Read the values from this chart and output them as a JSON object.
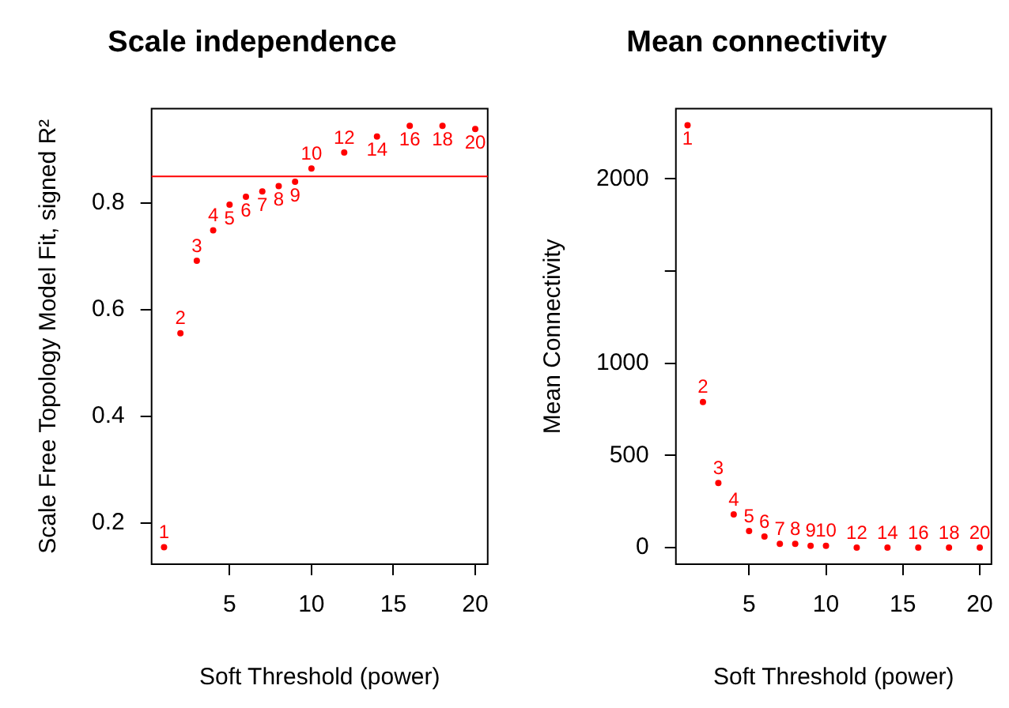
{
  "chart_data": [
    {
      "type": "scatter",
      "title": "Scale independence",
      "xlabel": "Soft Threshold (power)",
      "ylabel": "Scale Free Topology Model Fit, signed R²",
      "x": [
        1,
        2,
        3,
        4,
        5,
        6,
        7,
        8,
        9,
        10,
        12,
        14,
        16,
        18,
        20
      ],
      "xlim": [
        0.24,
        20.76
      ],
      "xticks": [
        5,
        10,
        15,
        20
      ],
      "ylim": [
        0.123,
        0.977
      ],
      "yticks": [
        0.2,
        0.4,
        0.6,
        0.8
      ],
      "marker": "circle",
      "grid": false,
      "legend": false,
      "series": [
        {
          "color": "#ff0000",
          "values": [
            0.155,
            0.556,
            0.692,
            0.749,
            0.797,
            0.812,
            0.822,
            0.832,
            0.84,
            0.865,
            0.895,
            0.925,
            0.945,
            0.945,
            0.939
          ]
        }
      ],
      "annotations": [
        {
          "text": "1",
          "x": 1,
          "y": 0.155
        },
        {
          "text": "2",
          "x": 2,
          "y": 0.556
        },
        {
          "text": "3",
          "x": 3,
          "y": 0.692
        },
        {
          "text": "4",
          "x": 4,
          "y": 0.749
        },
        {
          "text": "5",
          "x": 5,
          "y": 0.797
        },
        {
          "text": "6",
          "x": 6,
          "y": 0.812
        },
        {
          "text": "7",
          "x": 7,
          "y": 0.822
        },
        {
          "text": "8",
          "x": 8,
          "y": 0.832
        },
        {
          "text": "9",
          "x": 9,
          "y": 0.84
        },
        {
          "text": "10",
          "x": 10,
          "y": 0.865
        },
        {
          "text": "12",
          "x": 12,
          "y": 0.895
        },
        {
          "text": "14",
          "x": 14,
          "y": 0.925
        },
        {
          "text": "16",
          "x": 16,
          "y": 0.945
        },
        {
          "text": "18",
          "x": 18,
          "y": 0.945
        },
        {
          "text": "20",
          "x": 20,
          "y": 0.939
        }
      ],
      "ref_lines": [
        {
          "axis": "y",
          "value": 0.85,
          "color": "#ff0000"
        }
      ]
    },
    {
      "type": "scatter",
      "title": "Mean connectivity",
      "xlabel": "Soft Threshold (power)",
      "ylabel": "Mean Connectivity",
      "x": [
        1,
        2,
        3,
        4,
        5,
        6,
        7,
        8,
        9,
        10,
        12,
        14,
        16,
        18,
        20
      ],
      "xlim": [
        0.24,
        20.76
      ],
      "xticks": [
        5,
        10,
        15,
        20
      ],
      "ylim": [
        -90,
        2380
      ],
      "yticks": [
        0,
        500,
        1000,
        {
          "value": 1500,
          "label": null
        },
        2000
      ],
      "marker": "circle",
      "grid": false,
      "legend": false,
      "series": [
        {
          "color": "#ff0000",
          "values": [
            2290,
            790,
            350,
            180,
            90,
            60,
            20,
            20,
            10,
            10,
            0,
            0,
            0,
            0,
            0
          ]
        }
      ],
      "annotations": [
        {
          "text": "1",
          "x": 1,
          "y": 2290
        },
        {
          "text": "2",
          "x": 2,
          "y": 790
        },
        {
          "text": "3",
          "x": 3,
          "y": 350
        },
        {
          "text": "4",
          "x": 4,
          "y": 180
        },
        {
          "text": "5",
          "x": 5,
          "y": 90
        },
        {
          "text": "6",
          "x": 6,
          "y": 60
        },
        {
          "text": "7",
          "x": 7,
          "y": 20
        },
        {
          "text": "8",
          "x": 8,
          "y": 20
        },
        {
          "text": "9",
          "x": 9,
          "y": 10
        },
        {
          "text": "10",
          "x": 10,
          "y": 10
        },
        {
          "text": "12",
          "x": 12,
          "y": 0
        },
        {
          "text": "14",
          "x": 14,
          "y": 0
        },
        {
          "text": "16",
          "x": 16,
          "y": 0
        },
        {
          "text": "18",
          "x": 18,
          "y": 0
        },
        {
          "text": "20",
          "x": 20,
          "y": 0
        }
      ]
    }
  ]
}
